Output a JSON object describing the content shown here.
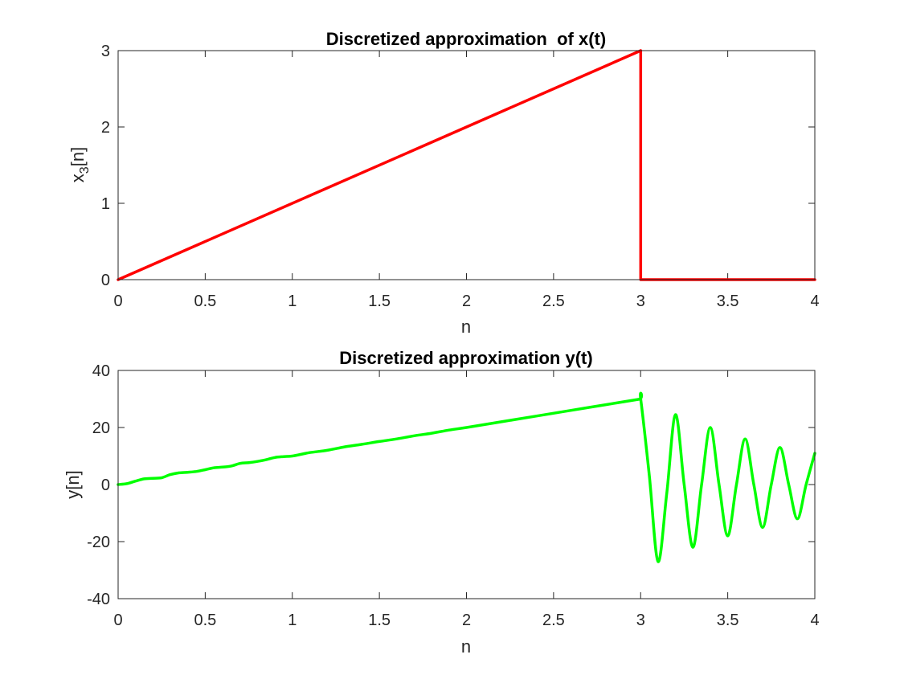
{
  "chart_data": [
    {
      "type": "line",
      "title": "Discretized approximation  of x(t)",
      "xlabel": "n",
      "ylabel": "x3[n]",
      "ylabel_main": "x",
      "ylabel_sub": "3",
      "ylabel_rest": "[n]",
      "xlim": [
        0,
        4
      ],
      "ylim": [
        0,
        3
      ],
      "xticks": [
        0,
        0.5,
        1,
        1.5,
        2,
        2.5,
        3,
        3.5,
        4
      ],
      "xtick_labels": [
        "0",
        "0.5",
        "1",
        "1.5",
        "2",
        "2.5",
        "3",
        "3.5",
        "4"
      ],
      "yticks": [
        0,
        1,
        2,
        3
      ],
      "ytick_labels": [
        "0",
        "1",
        "2",
        "3"
      ],
      "grid": false,
      "series": [
        {
          "color": "#ff0000",
          "x": [
            0,
            3,
            3,
            4
          ],
          "y": [
            0,
            3,
            0,
            0
          ]
        }
      ]
    },
    {
      "type": "line",
      "title": "Discretized approximation y(t)",
      "xlabel": "n",
      "ylabel": "y[n]",
      "xlim": [
        0,
        4
      ],
      "ylim": [
        -40,
        40
      ],
      "xticks": [
        0,
        0.5,
        1,
        1.5,
        2,
        2.5,
        3,
        3.5,
        4
      ],
      "xtick_labels": [
        "0",
        "0.5",
        "1",
        "1.5",
        "2",
        "2.5",
        "3",
        "3.5",
        "4"
      ],
      "yticks": [
        -40,
        -20,
        0,
        20,
        40
      ],
      "ytick_labels": [
        "-40",
        "-20",
        "0",
        "20",
        "40"
      ],
      "grid": false,
      "series": [
        {
          "color": "#00ff00",
          "x": [
            0,
            0.05,
            0.1,
            0.15,
            0.2,
            0.25,
            0.3,
            0.35,
            0.4,
            0.45,
            0.5,
            0.55,
            0.6,
            0.65,
            0.7,
            0.75,
            0.8,
            0.85,
            0.9,
            0.95,
            1.0,
            1.1,
            1.2,
            1.3,
            1.4,
            1.5,
            1.6,
            1.7,
            1.8,
            1.9,
            2.0,
            2.2,
            2.4,
            2.6,
            2.8,
            2.99,
            3.0,
            3.05,
            3.1,
            3.15,
            3.2,
            3.25,
            3.3,
            3.35,
            3.4,
            3.45,
            3.5,
            3.55,
            3.6,
            3.65,
            3.7,
            3.75,
            3.8,
            3.85,
            3.9,
            3.95,
            4.0
          ],
          "y": [
            0,
            0.3,
            1.2,
            2.0,
            2.2,
            2.4,
            3.5,
            4.1,
            4.3,
            4.6,
            5.2,
            5.9,
            6.1,
            6.5,
            7.4,
            7.7,
            8.1,
            8.7,
            9.5,
            9.8,
            10,
            11.2,
            12.0,
            13.2,
            14.1,
            15.1,
            16.0,
            17.1,
            18.0,
            19.1,
            20,
            22,
            24,
            26,
            28,
            29.9,
            30,
            3,
            -27,
            -3,
            24.5,
            0,
            -22,
            0,
            20,
            0,
            -18,
            0,
            16,
            0,
            -15,
            0,
            13,
            0,
            -12,
            0,
            11
          ]
        }
      ]
    }
  ]
}
